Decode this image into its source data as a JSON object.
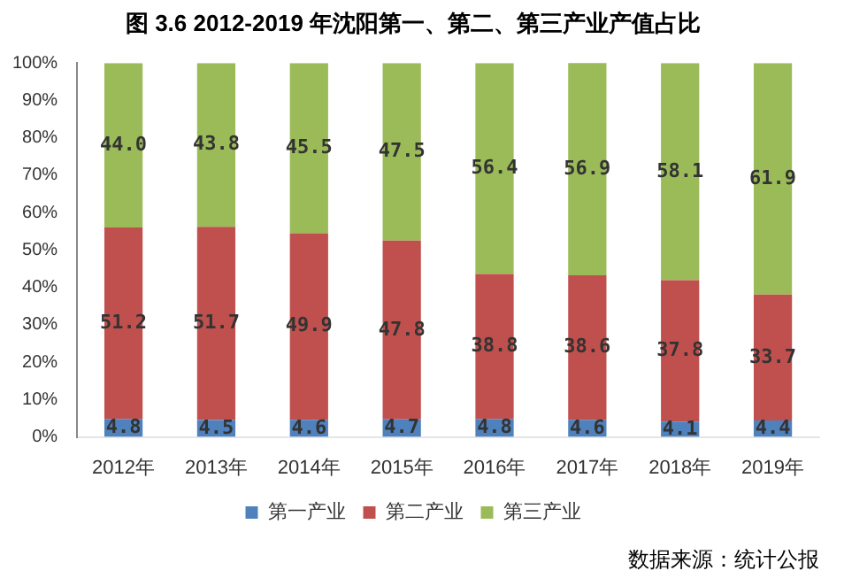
{
  "chart_data": {
    "type": "bar",
    "title": "图 3.6 2012-2019 年沈阳第一、第二、第三产业产值占比",
    "categories": [
      "2012年",
      "2013年",
      "2014年",
      "2015年",
      "2016年",
      "2017年",
      "2018年",
      "2019年"
    ],
    "stacked": true,
    "series": [
      {
        "name": "第一产业",
        "color": "#4f81bd",
        "values": [
          4.8,
          4.5,
          4.6,
          4.7,
          4.8,
          4.6,
          4.1,
          4.4
        ],
        "value_labels": [
          "4.8",
          "4.5",
          "4.6",
          "4.7",
          "4.8",
          "4.6",
          "4.1",
          "4.4"
        ]
      },
      {
        "name": "第二产业",
        "color": "#c0504d",
        "values": [
          51.2,
          51.7,
          49.9,
          47.8,
          38.8,
          38.6,
          37.8,
          33.7
        ],
        "value_labels": [
          "51.2",
          "51.7",
          "49.9",
          "47.8",
          "38.8",
          "38.6",
          "37.8",
          "33.7"
        ]
      },
      {
        "name": "第三产业",
        "color": "#9bbb59",
        "values": [
          44.0,
          43.8,
          45.5,
          47.5,
          56.4,
          56.9,
          58.1,
          61.9
        ],
        "value_labels": [
          "44.0",
          "43.8",
          "45.5",
          "47.5",
          "56.4",
          "56.9",
          "58.1",
          "61.9"
        ]
      }
    ],
    "ylim": [
      0,
      100
    ],
    "yticks": [
      {
        "value": 0,
        "label": "0%"
      },
      {
        "value": 10,
        "label": "10%"
      },
      {
        "value": 20,
        "label": "20%"
      },
      {
        "value": 30,
        "label": "30%"
      },
      {
        "value": 40,
        "label": "40%"
      },
      {
        "value": 50,
        "label": "50%"
      },
      {
        "value": 60,
        "label": "60%"
      },
      {
        "value": 70,
        "label": "70%"
      },
      {
        "value": 80,
        "label": "80%"
      },
      {
        "value": 90,
        "label": "90%"
      },
      {
        "value": 100,
        "label": "100%"
      }
    ],
    "grid": false,
    "legend": "bottom",
    "annotations": [
      "数据来源：统计公报"
    ]
  }
}
